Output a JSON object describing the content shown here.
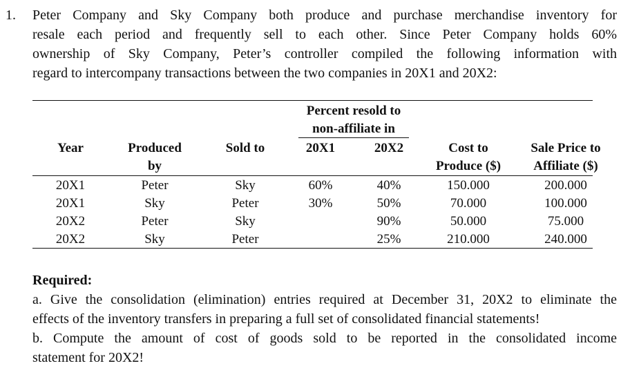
{
  "question": {
    "number": "1.",
    "intro_lines": [
      "Peter Company and Sky Company both produce and purchase merchandise inventory for",
      "resale each period and frequently sell to each other. Since Peter Company holds 60%",
      "ownership of Sky Company, Peter’s controller compiled the following information with",
      "regard to intercompany transactions between the two companies in 20X1 and 20X2:"
    ]
  },
  "table": {
    "headers": {
      "percent_resold_line1": "Percent resold to",
      "percent_resold_line2": "non-affiliate in",
      "year": "Year",
      "produced_line1": "Produced",
      "produced_line2": "by",
      "sold_to": "Sold to",
      "col_20x1": "20X1",
      "col_20x2": "20X2",
      "cost_line1": "Cost to",
      "cost_line2": "Produce ($)",
      "sale_line1": "Sale Price to",
      "sale_line2": "Affiliate ($)"
    },
    "rows": [
      {
        "year": "20X1",
        "produced_by": "Peter",
        "sold_to": "Sky",
        "pct_20x1": "60%",
        "pct_20x2": "40%",
        "cost": "150.000",
        "sale_price": "200.000"
      },
      {
        "year": "20X1",
        "produced_by": "Sky",
        "sold_to": "Peter",
        "pct_20x1": "30%",
        "pct_20x2": "50%",
        "cost": "70.000",
        "sale_price": "100.000"
      },
      {
        "year": "20X2",
        "produced_by": "Peter",
        "sold_to": "Sky",
        "pct_20x1": "",
        "pct_20x2": "90%",
        "cost": "50.000",
        "sale_price": "75.000"
      },
      {
        "year": "20X2",
        "produced_by": "Sky",
        "sold_to": "Peter",
        "pct_20x1": "",
        "pct_20x2": "25%",
        "cost": "210.000",
        "sale_price": "240.000"
      }
    ]
  },
  "required": {
    "title": "Required:",
    "part_a_lines": [
      "a. Give the consolidation (elimination) entries required at December 31, 20X2 to eliminate the",
      "effects of the inventory transfers in preparing a full set of consolidated financial statements!"
    ],
    "part_b_lines": [
      "b. Compute the amount of cost of goods sold to be reported in the consolidated income",
      "statement for 20X2!"
    ]
  }
}
